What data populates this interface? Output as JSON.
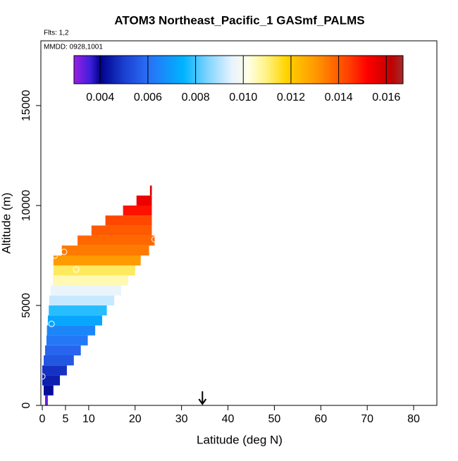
{
  "chart_data": {
    "type": "curtain",
    "title": "ATOM3 Northeast_Pacific_1 GASmf_PALMS",
    "flights_note": "Flts: 1,2",
    "date_note": "MMDD: 0928,1001",
    "x_label": "Latitude (deg N)",
    "y_label": "Altitude (m)",
    "xlim": [
      0,
      85
    ],
    "xticks": [
      0,
      5,
      10,
      20,
      30,
      40,
      50,
      60,
      70,
      80
    ],
    "ylim": [
      0,
      18240
    ],
    "yticks": [
      0,
      5000,
      10000,
      15000
    ],
    "colorbar_lim": [
      0.0029,
      0.0167
    ],
    "colorbar_ticks": [
      0.004,
      0.006,
      0.008,
      {
        "value": 0.01,
        "label": "0.010"
      },
      0.012,
      0.014,
      0.016
    ],
    "colormap": [
      [
        0.0029,
        "#9a1fe6"
      ],
      [
        0.0036,
        "#3b1fd8"
      ],
      [
        0.004,
        "#00008b"
      ],
      [
        0.005,
        "#1a3fd0"
      ],
      [
        0.006,
        "#2a6ff5"
      ],
      [
        0.0075,
        "#00b4ff"
      ],
      [
        0.0085,
        "#7fd4ff"
      ],
      [
        0.0095,
        "#e6f2ff"
      ],
      [
        0.0102,
        "#ffffe6"
      ],
      [
        0.011,
        "#fff27f"
      ],
      [
        0.0118,
        "#ffd400"
      ],
      [
        0.013,
        "#ff9a00"
      ],
      [
        0.0145,
        "#ff3a00"
      ],
      [
        0.0152,
        "#ff0000"
      ],
      [
        0.0162,
        "#c00000"
      ],
      [
        0.0167,
        "#a52a2a"
      ]
    ],
    "cells": {
      "lat_min": [
        0.6,
        0.3,
        0,
        0,
        0.3,
        0.6,
        0.9,
        1,
        1.2,
        1.4,
        1.5,
        1.8,
        2.3,
        2.4,
        2.4,
        4.2,
        7.6,
        10.6,
        13.6,
        17.4,
        20.3,
        23.2
      ],
      "lat_max": [
        1.2,
        2.4,
        3.8,
        5.3,
        6.8,
        8.3,
        9.8,
        11.4,
        12.9,
        13.9,
        15.5,
        17,
        18.5,
        20,
        21.2,
        23,
        24.2,
        23.6,
        23.6,
        23.6,
        23.6,
        23.6
      ],
      "alt_min": [
        0,
        500,
        1000,
        1500,
        2000,
        2500,
        3000,
        3500,
        4000,
        4500,
        5000,
        5500,
        6000,
        6500,
        7000,
        7500,
        8000,
        8500,
        9000,
        9500,
        10000,
        10500
      ],
      "alt_max": [
        500,
        1000,
        1500,
        2000,
        2500,
        3000,
        3500,
        4000,
        4500,
        5000,
        5500,
        6000,
        6500,
        7000,
        7500,
        8000,
        8500,
        9000,
        9500,
        10000,
        10500,
        11000
      ],
      "values": [
        0.0033,
        0.0042,
        0.0045,
        0.0048,
        0.0055,
        0.0058,
        0.0062,
        0.0065,
        0.0072,
        0.0078,
        0.0092,
        0.0096,
        0.0106,
        0.0112,
        0.013,
        0.0135,
        0.0138,
        0.014,
        0.0143,
        0.015,
        0.0155,
        0.0158
      ]
    },
    "markers": {
      "lat": [
        0,
        2,
        2.7,
        4.7,
        7.3,
        24.2
      ],
      "alt": [
        1450,
        4080,
        7500,
        7680,
        6800,
        8310
      ]
    },
    "arrow_lat": 34.5
  }
}
